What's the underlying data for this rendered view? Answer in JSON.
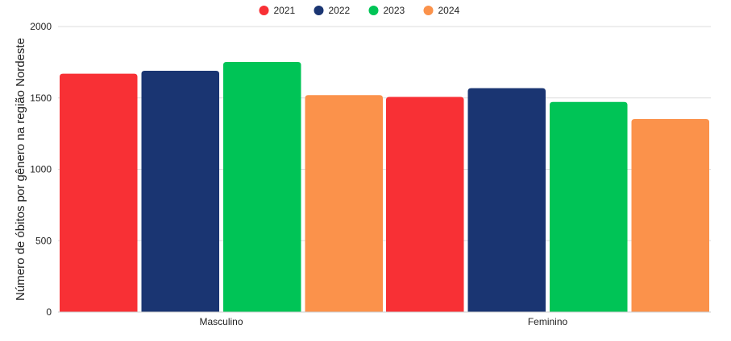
{
  "chart_data": {
    "type": "bar",
    "categories": [
      "Masculino",
      "Feminino"
    ],
    "series": [
      {
        "name": "2021",
        "color": "#f83035",
        "values": [
          1670,
          1507
        ]
      },
      {
        "name": "2022",
        "color": "#1a3572",
        "values": [
          1690,
          1568
        ]
      },
      {
        "name": "2023",
        "color": "#00c456",
        "values": [
          1752,
          1472
        ]
      },
      {
        "name": "2024",
        "color": "#fb924b",
        "values": [
          1520,
          1352
        ]
      }
    ],
    "title": "",
    "xlabel": "",
    "ylabel": "Número de óbitos por gênero na região Nordeste",
    "ylim": [
      0,
      2000
    ],
    "yticks": [
      0,
      500,
      1000,
      1500,
      2000
    ],
    "grid": true,
    "legend_position": "top-center"
  }
}
